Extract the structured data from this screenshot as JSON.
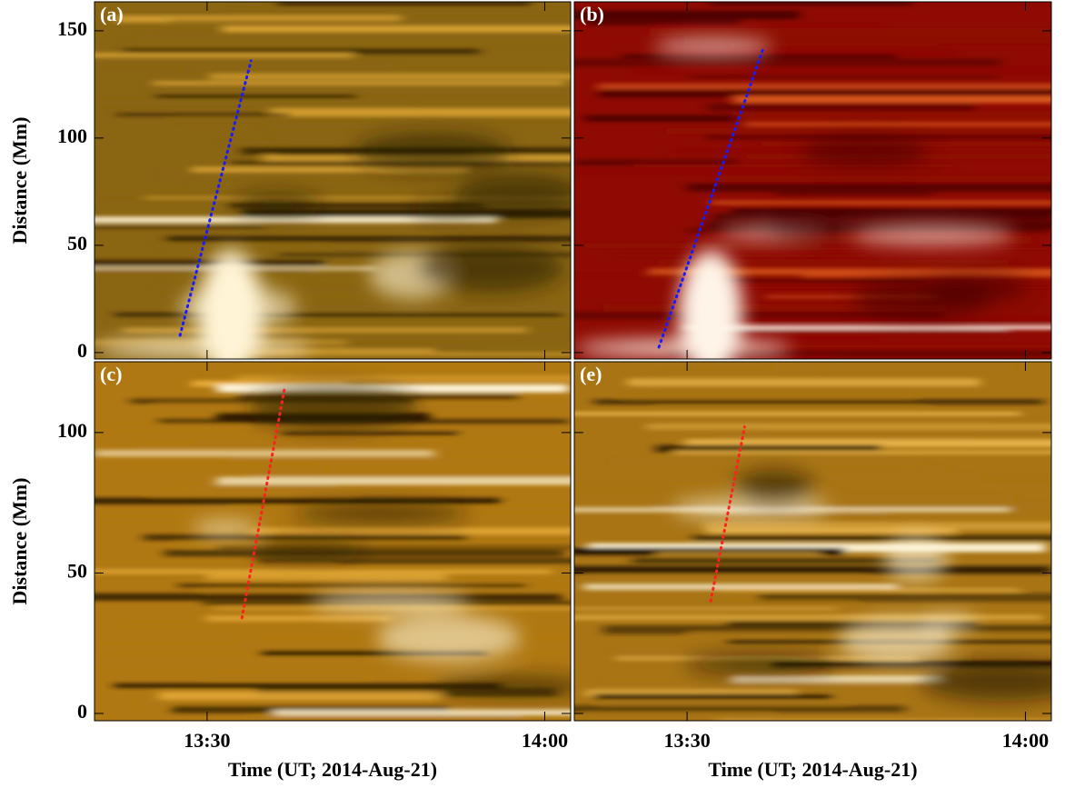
{
  "chart_data": [
    {
      "type": "image",
      "title": "(a)",
      "ylabel": "Distance (Mm)",
      "colormap": [
        "#2a1a02",
        "#8a6512",
        "#d9a232",
        "#fff4d6"
      ],
      "xlim": [
        20,
        62.3
      ],
      "xticks": [
        {
          "value": 30,
          "label": "13:30"
        },
        {
          "value": 60,
          "label": "14:00"
        }
      ],
      "ylim": [
        -3,
        163.5
      ],
      "yticks": [
        0,
        50,
        100,
        150
      ],
      "series": [
        {
          "color": "#1a1aff",
          "x": [
            27.6,
            33.9
          ],
          "values": [
            8,
            136
          ]
        }
      ]
    },
    {
      "type": "image",
      "title": "(b)",
      "colormap": [
        "#4a0000",
        "#8e0a02",
        "#d8561a",
        "#fff4e8"
      ],
      "xlim": [
        20,
        62.3
      ],
      "xticks": [
        {
          "value": 30,
          "label": "13:30"
        },
        {
          "value": 60,
          "label": "14:00"
        }
      ],
      "ylim": [
        -3,
        163.5
      ],
      "yticks": [
        0,
        50,
        100,
        150
      ],
      "series": [
        {
          "color": "#1a1aff",
          "x": [
            27.5,
            36.7
          ],
          "values": [
            2.5,
            141
          ]
        }
      ]
    },
    {
      "type": "image",
      "title": "(c)",
      "ylabel": "Distance (Mm)",
      "xlabel": "Time (UT; 2014-Aug-21)",
      "colormap": [
        "#2a1a02",
        "#b07812",
        "#e9ad3a",
        "#fff6dc"
      ],
      "xlim": [
        20,
        62.3
      ],
      "xticks": [
        {
          "value": 30,
          "label": "13:30"
        },
        {
          "value": 60,
          "label": "14:00"
        }
      ],
      "ylim": [
        -2.6,
        125.2
      ],
      "yticks": [
        0,
        50,
        100
      ],
      "series": [
        {
          "color": "#ff2020",
          "x": [
            33.1,
            36.9
          ],
          "values": [
            34,
            116
          ]
        }
      ]
    },
    {
      "type": "image",
      "title": "(e)",
      "xlabel": "Time (UT; 2014-Aug-21)",
      "colormap": [
        "#1e1202",
        "#a87414",
        "#e8b44a",
        "#fff6dc"
      ],
      "xlim": [
        20,
        62.3
      ],
      "xticks": [
        {
          "value": 30,
          "label": "13:30"
        },
        {
          "value": 60,
          "label": "14:00"
        }
      ],
      "ylim": [
        -2.6,
        125.2
      ],
      "yticks": [
        0,
        50,
        100
      ],
      "series": [
        {
          "color": "#ff2020",
          "x": [
            32.1,
            35.1
          ],
          "values": [
            40,
            102
          ]
        }
      ]
    }
  ]
}
